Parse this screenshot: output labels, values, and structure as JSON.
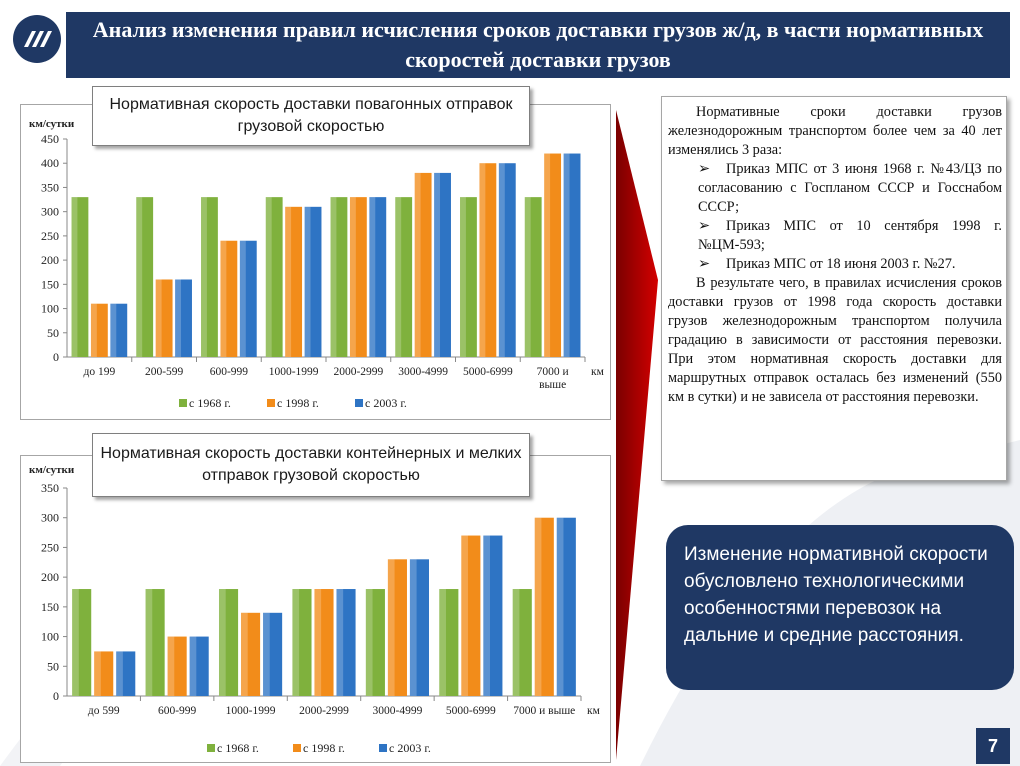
{
  "title": "Анализ изменения правил исчисления сроков доставки грузов ж/д, в части нормативных скоростей доставки грузов",
  "page_number": "7",
  "colors": {
    "c1968": "#7fb13d",
    "c1998": "#f28c1a",
    "c2003": "#2e74c4",
    "brand": "#1f3864",
    "arrow": "#c00000"
  },
  "legend": [
    "с 1968 г.",
    "с 1998 г.",
    "с 2003 г."
  ],
  "chart_data": [
    {
      "type": "bar",
      "title": "Нормативная скорость доставки повагонных отправок грузовой скоростью",
      "ylabel": "км/сутки",
      "xunit": "км",
      "ylim": [
        0,
        450
      ],
      "yticks": [
        0,
        50,
        100,
        150,
        200,
        250,
        300,
        350,
        400,
        450
      ],
      "categories": [
        "до 199",
        "200-599",
        "600-999",
        "1000-1999",
        "2000-2999",
        "3000-4999",
        "5000-6999",
        "7000 и выше"
      ],
      "series": [
        {
          "name": "с 1968 г.",
          "values": [
            330,
            330,
            330,
            330,
            330,
            330,
            330,
            330
          ]
        },
        {
          "name": "с 1998 г.",
          "values": [
            110,
            160,
            240,
            310,
            330,
            380,
            400,
            420
          ]
        },
        {
          "name": "с 2003 г.",
          "values": [
            110,
            160,
            240,
            310,
            330,
            380,
            400,
            420
          ]
        }
      ],
      "legend_position": "bottom"
    },
    {
      "type": "bar",
      "title": "Нормативная скорость доставки контейнерных и мелких отправок грузовой скоростью",
      "ylabel": "км/сутки",
      "xunit": "км",
      "ylim": [
        0,
        350
      ],
      "yticks": [
        0,
        50,
        100,
        150,
        200,
        250,
        300,
        350
      ],
      "categories": [
        "до 599",
        "600-999",
        "1000-1999",
        "2000-2999",
        "3000-4999",
        "5000-6999",
        "7000 и выше"
      ],
      "series": [
        {
          "name": "с 1968 г.",
          "values": [
            180,
            180,
            180,
            180,
            180,
            180,
            180
          ]
        },
        {
          "name": "с 1998 г.",
          "values": [
            75,
            100,
            140,
            180,
            230,
            270,
            300
          ]
        },
        {
          "name": "с 2003 г.",
          "values": [
            75,
            100,
            140,
            180,
            230,
            270,
            300
          ]
        }
      ],
      "legend_position": "bottom"
    }
  ],
  "panel": {
    "intro": "Нормативные сроки доставки грузов железнодорожным транспортом более чем за 40 лет изменялись 3 раза:",
    "bullet_symbol": "➢",
    "items": [
      "Приказ МПС от 3 июня 1968 г. №43/ЦЗ по согласованию с Госпланом СССР и Госснабом СССР;",
      "Приказ МПС от 10 сентября 1998 г. №ЦМ-593;",
      "Приказ МПС от 18 июня 2003 г. №27."
    ],
    "conclusion": "В результате чего, в правилах исчисления сроков доставки грузов от 1998 года скорость доставки грузов железнодорожным транспортом получила градацию в зависимости от расстояния перевозки. При этом нормативная скорость доставки для маршрутных отправок осталась без изменений (550 км в сутки) и не зависела от расстояния перевозки."
  },
  "callout": "Изменение нормативной скорости обусловлено технологическими особенностями перевозок на дальние и средние расстояния."
}
